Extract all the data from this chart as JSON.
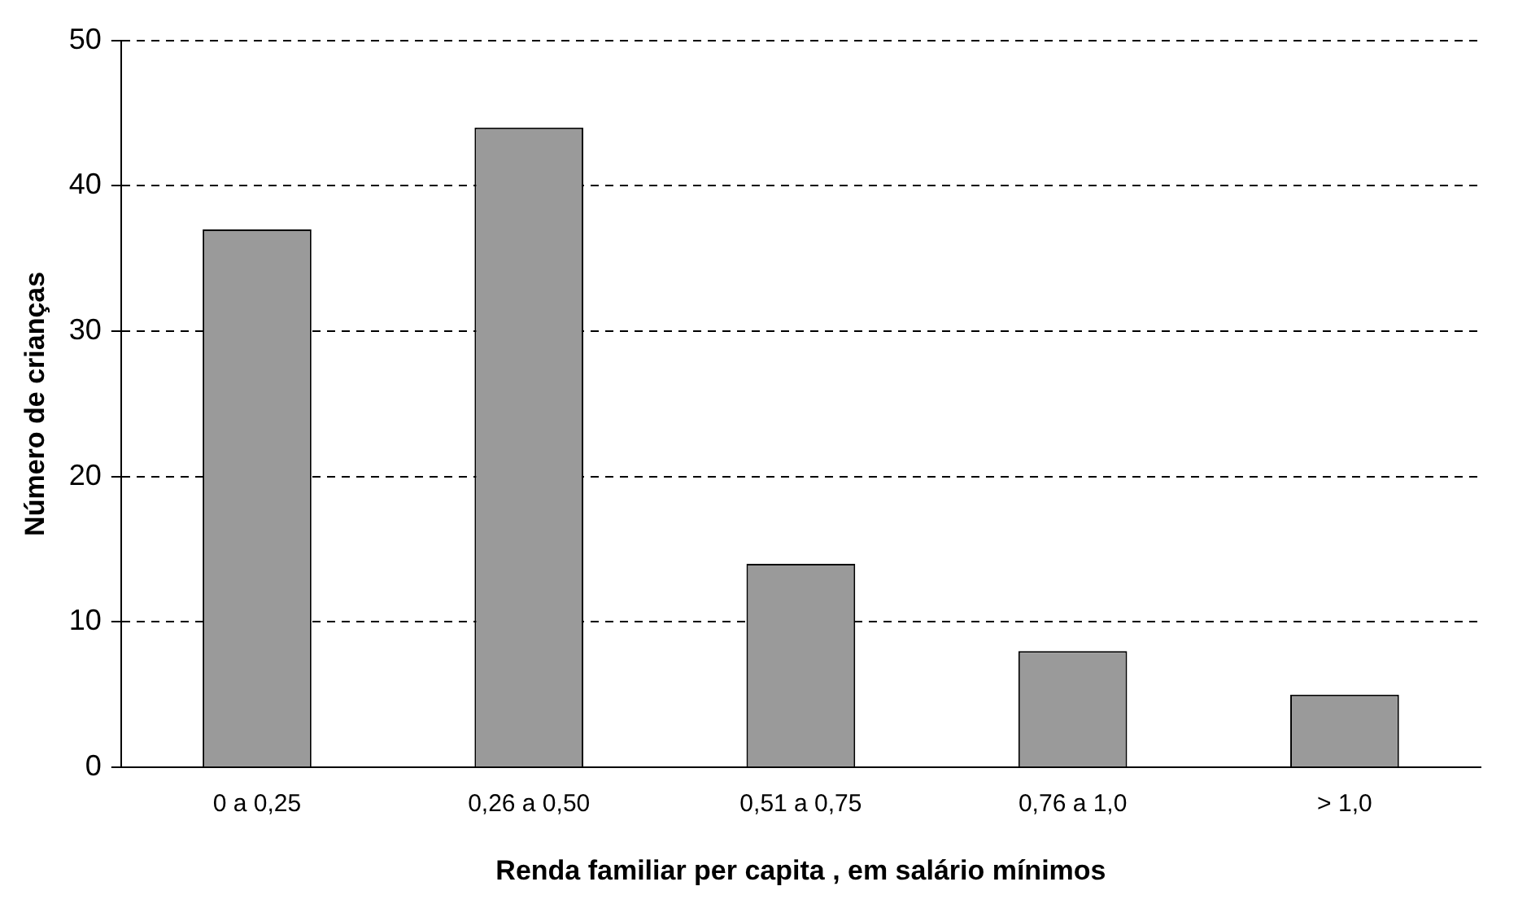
{
  "chart_data": {
    "type": "bar",
    "xlabel": "Renda familiar per capita , em salário mínimos",
    "ylabel": "Número de crianças",
    "categories": [
      "0 a 0,25",
      "0,26 a 0,50",
      "0,51 a 0,75",
      "0,76 a 1,0",
      "> 1,0"
    ],
    "values": [
      37,
      44,
      14,
      8,
      5
    ],
    "color": "#9a9a9a",
    "ylim": [
      0,
      50
    ],
    "yticks": [
      0,
      10,
      20,
      30,
      40,
      50
    ],
    "grid": "y",
    "legend": false
  }
}
